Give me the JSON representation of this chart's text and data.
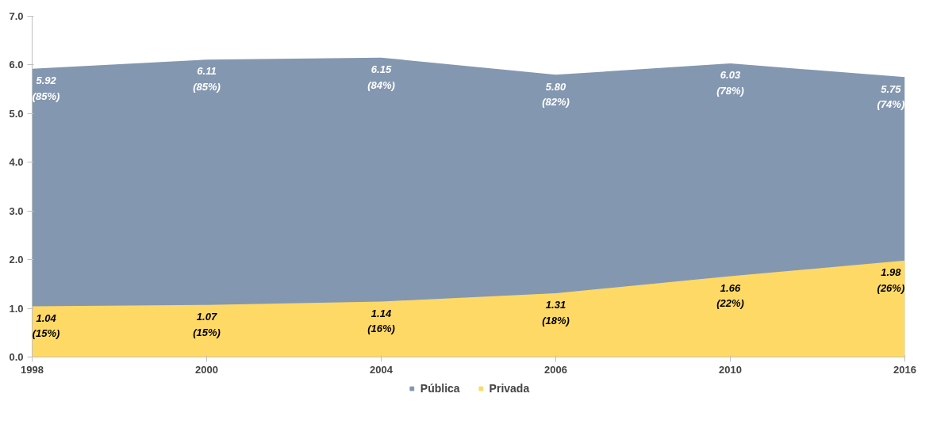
{
  "chart_data": {
    "type": "area",
    "categories": [
      "1998",
      "2000",
      "2004",
      "2006",
      "2010",
      "2016"
    ],
    "series": [
      {
        "name": "Pública",
        "color": "#8497b0",
        "values": [
          5.92,
          6.11,
          6.15,
          5.8,
          6.03,
          5.75
        ],
        "value_labels": [
          "5.92\n(85%)",
          "6.11\n(85%)",
          "6.15\n(84%)",
          "5.80\n(82%)",
          "6.03\n(78%)",
          "5.75\n(74%)"
        ]
      },
      {
        "name": "Privada",
        "color": "#ffd966",
        "values": [
          1.04,
          1.07,
          1.14,
          1.31,
          1.66,
          1.98
        ],
        "value_labels": [
          "1.04\n(15%)",
          "1.07\n(15%)",
          "1.14\n(16%)",
          "1.31\n(18%)",
          "1.66\n(22%)",
          "1.98\n(26%)"
        ]
      }
    ],
    "ylim": [
      0,
      7
    ],
    "yticks": [
      {
        "value": 0,
        "label": "0.0"
      },
      {
        "value": 1,
        "label": "1.0"
      },
      {
        "value": 2,
        "label": "2.0"
      },
      {
        "value": 3,
        "label": "3.0"
      },
      {
        "value": 4,
        "label": "4.0"
      },
      {
        "value": 5,
        "label": "5.0"
      },
      {
        "value": 6,
        "label": "6.0"
      },
      {
        "value": 7,
        "label": "7.0"
      }
    ],
    "grid": false,
    "legend": "bottom"
  }
}
